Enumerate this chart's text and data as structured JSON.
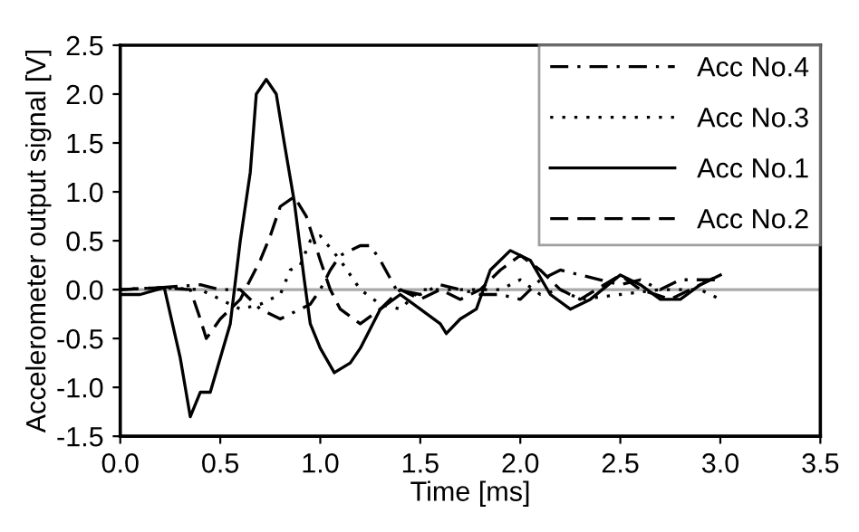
{
  "chart_data": {
    "type": "line",
    "xlabel": "Time [ms]",
    "ylabel": "Accelerometer output signal [V]",
    "xlim": [
      0,
      3.5
    ],
    "ylim": [
      -1.5,
      2.5
    ],
    "xticks": [
      {
        "value": 0,
        "label": "0.0"
      },
      0.5,
      {
        "value": 1,
        "label": "1.0"
      },
      1.5,
      {
        "value": 2,
        "label": "2.0"
      },
      2.5,
      {
        "value": 3,
        "label": "3.0"
      },
      3.5
    ],
    "yticks": [
      {
        "value": -1.5,
        "label": "-1.5"
      },
      {
        "value": -1,
        "label": "-1.0"
      },
      {
        "value": -0.5,
        "label": "-0.5"
      },
      {
        "value": 0,
        "label": "0.0"
      },
      0.5,
      {
        "value": 1,
        "label": "1.0"
      },
      1.5,
      {
        "value": 2,
        "label": "2.0"
      },
      2.5
    ],
    "grid": false,
    "legend": "top right",
    "ref_lines": [
      {
        "axis": "y",
        "value": 0,
        "color": "#aaaaaa"
      }
    ],
    "series": [
      {
        "name": "Acc No.4",
        "color": "#000000",
        "line_style": "dashdot",
        "x": [
          0,
          0.2,
          0.4,
          0.5,
          0.6,
          0.7,
          0.8,
          0.9,
          0.95,
          1.0,
          1.05,
          1.1,
          1.2,
          1.25,
          1.3,
          1.38,
          1.5,
          1.6,
          1.7,
          1.8,
          1.9,
          2.0,
          2.1,
          2.2,
          2.3,
          2.4,
          2.5,
          2.6,
          2.7,
          2.8,
          3.0
        ],
        "values": [
          0,
          0.02,
          0.05,
          0.0,
          0.0,
          -0.2,
          -0.3,
          -0.2,
          -0.15,
          0.0,
          0.2,
          0.35,
          0.45,
          0.45,
          0.3,
          0.0,
          -0.05,
          0.05,
          0.0,
          -0.05,
          -0.05,
          -0.1,
          0.1,
          0.2,
          0.15,
          0.1,
          0.05,
          0.1,
          0.0,
          0.1,
          0.1
        ]
      },
      {
        "name": "Acc No.3",
        "color": "#000000",
        "line_style": "dotted",
        "x": [
          0,
          0.2,
          0.4,
          0.5,
          0.6,
          0.7,
          0.8,
          0.85,
          0.9,
          0.95,
          1.0,
          1.1,
          1.2,
          1.3,
          1.4,
          1.5,
          1.7,
          1.8,
          1.9,
          2.0,
          2.1,
          2.2,
          2.3,
          2.5,
          2.7,
          2.9,
          3.0
        ],
        "values": [
          0,
          0.02,
          0.0,
          -0.1,
          -0.2,
          -0.15,
          -0.05,
          0.2,
          0.25,
          0.5,
          0.55,
          0.3,
          0.0,
          -0.15,
          -0.2,
          0.0,
          0.0,
          0.0,
          0.0,
          0.1,
          -0.05,
          0.0,
          -0.1,
          -0.05,
          0.0,
          0.0,
          -0.1
        ]
      },
      {
        "name": "Acc No.1",
        "color": "#000000",
        "line_style": "solid",
        "x": [
          0,
          0.1,
          0.22,
          0.3,
          0.35,
          0.4,
          0.45,
          0.5,
          0.55,
          0.6,
          0.65,
          0.68,
          0.73,
          0.78,
          0.82,
          0.87,
          0.92,
          0.95,
          1.0,
          1.07,
          1.15,
          1.2,
          1.3,
          1.4,
          1.5,
          1.6,
          1.63,
          1.7,
          1.78,
          1.85,
          1.95,
          2.05,
          2.15,
          2.25,
          2.35,
          2.5,
          2.6,
          2.7,
          2.8,
          2.9,
          3.0
        ],
        "values": [
          -0.05,
          -0.05,
          0.02,
          -0.7,
          -1.3,
          -1.05,
          -1.05,
          -0.7,
          -0.35,
          0.5,
          1.2,
          2.0,
          2.15,
          2.0,
          1.5,
          0.9,
          0.1,
          -0.35,
          -0.6,
          -0.85,
          -0.75,
          -0.6,
          -0.2,
          -0.05,
          -0.2,
          -0.35,
          -0.45,
          -0.3,
          -0.2,
          0.2,
          0.4,
          0.3,
          -0.05,
          -0.2,
          -0.1,
          0.15,
          0.05,
          -0.1,
          -0.1,
          0.05,
          0.15
        ]
      },
      {
        "name": "Acc No.2",
        "color": "#000000",
        "line_style": "dashed",
        "x": [
          0,
          0.2,
          0.35,
          0.4,
          0.43,
          0.5,
          0.6,
          0.65,
          0.7,
          0.75,
          0.8,
          0.87,
          0.93,
          1.0,
          1.05,
          1.1,
          1.2,
          1.3,
          1.4,
          1.5,
          1.6,
          1.7,
          1.8,
          1.9,
          2.0,
          2.1,
          2.2,
          2.3,
          2.5,
          2.6,
          2.75,
          2.9,
          3.0
        ],
        "values": [
          0,
          0.02,
          0.0,
          -0.3,
          -0.5,
          -0.3,
          -0.1,
          0.1,
          0.3,
          0.55,
          0.85,
          0.95,
          0.75,
          0.3,
          0.0,
          -0.2,
          -0.35,
          -0.2,
          0.0,
          -0.1,
          0.0,
          -0.1,
          0.0,
          0.2,
          0.35,
          0.2,
          0.0,
          -0.1,
          0.15,
          0.0,
          -0.1,
          0.05,
          0.15
        ]
      }
    ]
  }
}
